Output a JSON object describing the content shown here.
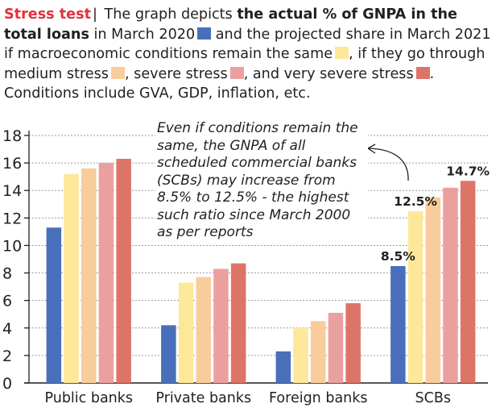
{
  "caption": {
    "tag": "Stress test",
    "separator": "|",
    "part1": " The graph depicts ",
    "bold1": "the actual % of GNPA in the total loans",
    "part2": " in March 2020",
    "part3": " and the projected share in March 2021 if macroeconomic conditions remain the same",
    "part4": ", if they go through medium stress",
    "part5": ", severe stress",
    "part6": ", and very severe stress",
    "part7": ". Conditions include GVA, GDP, inflation, etc."
  },
  "annotation": "Even if conditions remain the same, the GNPA of all scheduled commercial banks (SCBs) may increase from 8.5% to 12.5% - the highest such ratio since March 2000 as per reports",
  "colors": {
    "march2020": "#4a6fba",
    "same": "#fde89a",
    "medium": "#f9cc9b",
    "severe": "#eba0a0",
    "very_severe": "#dd7468",
    "tag": "#e2313c",
    "grid": "#9a9a9a",
    "axis": "#231f20"
  },
  "chart_data": {
    "type": "bar",
    "categories": [
      "Public banks",
      "Private banks",
      "Foreign banks",
      "SCBs"
    ],
    "series": [
      {
        "key": "march2020",
        "values": [
          11.3,
          4.2,
          2.3,
          8.5
        ]
      },
      {
        "key": "same",
        "values": [
          15.2,
          7.3,
          4.0,
          12.5
        ]
      },
      {
        "key": "medium",
        "values": [
          15.6,
          7.7,
          4.5,
          13.5
        ]
      },
      {
        "key": "severe",
        "values": [
          16.0,
          8.3,
          5.1,
          14.2
        ]
      },
      {
        "key": "very_severe",
        "values": [
          16.3,
          8.7,
          5.8,
          14.7
        ]
      }
    ],
    "ylim": [
      0,
      18
    ],
    "yticks": [
      0,
      2,
      4,
      6,
      8,
      10,
      12,
      14,
      16,
      18
    ],
    "grid": true,
    "data_labels": [
      {
        "category": 3,
        "series": 0,
        "text": "8.5%"
      },
      {
        "category": 3,
        "series": 1,
        "text": "12.5%"
      },
      {
        "category": 3,
        "series": 4,
        "text": "14.7%"
      }
    ]
  }
}
